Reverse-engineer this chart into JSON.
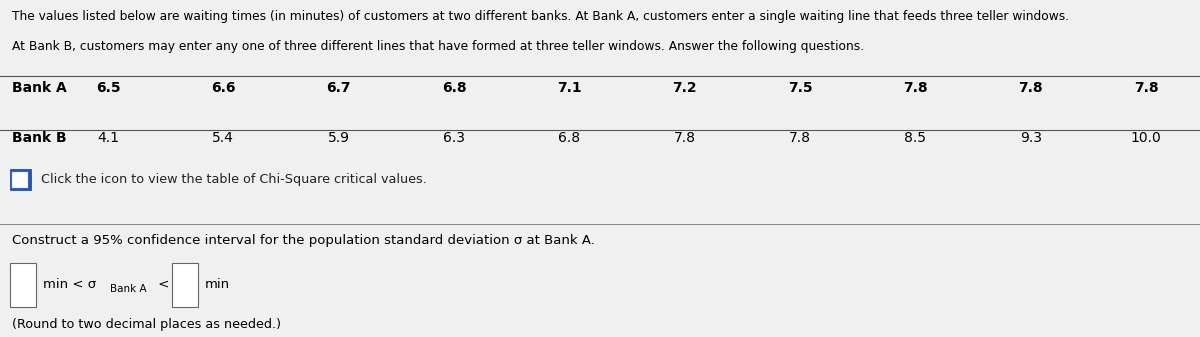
{
  "title_line1": "The values listed below are waiting times (in minutes) of customers at two different banks. At Bank A, customers enter a single waiting line that feeds three teller windows.",
  "title_line2": "At Bank B, customers may enter any one of three different lines that have formed at three teller windows. Answer the following questions.",
  "bank_a_label": "Bank A",
  "bank_b_label": "Bank B",
  "bank_a_values": [
    "6.5",
    "6.6",
    "6.7",
    "6.8",
    "7.1",
    "7.2",
    "7.5",
    "7.8",
    "7.8",
    "7.8"
  ],
  "bank_b_values": [
    "4.1",
    "5.4",
    "5.9",
    "6.3",
    "6.8",
    "7.8",
    "7.8",
    "8.5",
    "9.3",
    "10.0"
  ],
  "icon_text": "Click the icon to view the table of Chi-Square critical values.",
  "question_text": "Construct a 95% confidence interval for the population standard deviation σ at Bank A.",
  "round_note": "(Round to two decimal places as needed.)",
  "bg_color": "#f0f0f0",
  "text_color": "#000000"
}
